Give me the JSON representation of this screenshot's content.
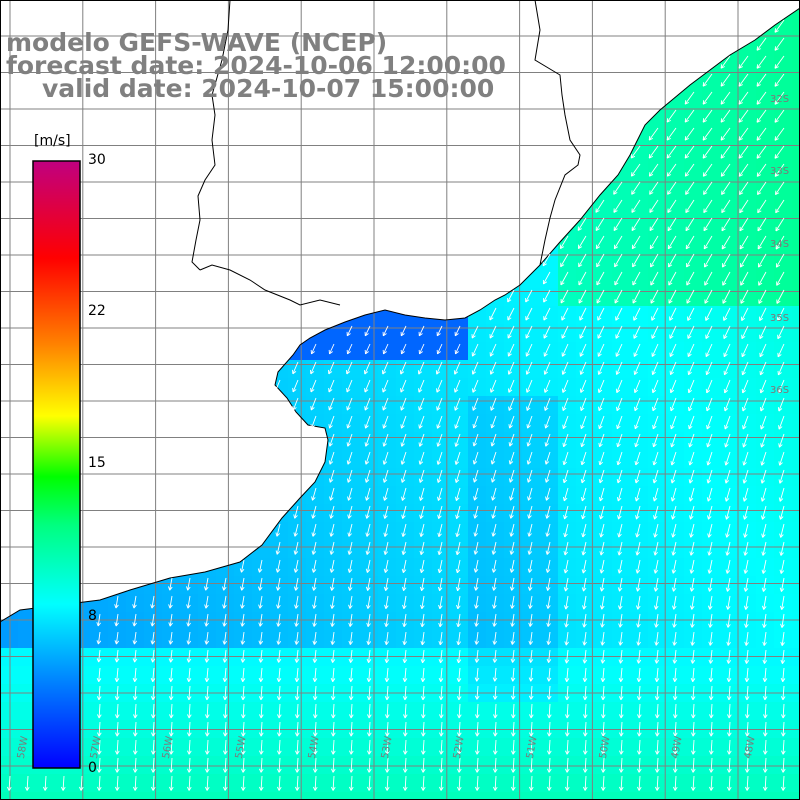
{
  "title": {
    "line1": "modelo GEFS-WAVE (NCEP)",
    "line2": "forecast date: 2024-10-06 12:00:00",
    "line3": "valid date: 2024-10-07 15:00:00"
  },
  "colorbar": {
    "units": "[m/s]",
    "ticks": [
      "30",
      "22",
      "15",
      "8",
      "0"
    ],
    "min": 0,
    "max": 30
  },
  "grid": {
    "lat_labels": [
      "32S",
      "33S",
      "34S",
      "35S",
      "36S"
    ],
    "lon_labels": [
      "58W",
      "57W",
      "56W",
      "55W",
      "54W",
      "53W",
      "52W",
      "51W",
      "50W",
      "49W",
      "48W"
    ]
  },
  "colors": {
    "land": "#ffffff",
    "coast": "#000000",
    "grid": "#808080",
    "arrow": "#ffffff",
    "title": "#808080",
    "colorbar_stops": [
      "#0000ff",
      "#0080ff",
      "#00ffff",
      "#00ff00",
      "#ffff00",
      "#ff8000",
      "#ff0000",
      "#c00080"
    ]
  },
  "map": {
    "field": "wind speed and direction",
    "region": "Rio de la Plata and southern Brazil coast",
    "prevailing_direction": "southwest-bound (from northeast)",
    "speed_range_ms": [
      3,
      11
    ]
  }
}
